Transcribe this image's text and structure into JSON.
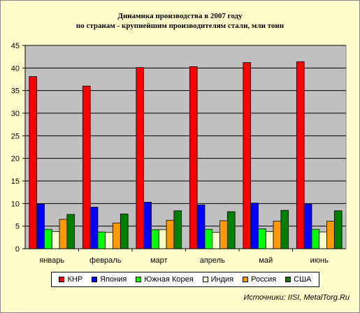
{
  "chart_data": {
    "type": "bar",
    "title_lines": [
      "Динамика производства в 2007 году",
      "по странам - крупнейшим производителям стали, млн тонн"
    ],
    "categories": [
      "январь",
      "февраль",
      "март",
      "апрель",
      "май",
      "июнь"
    ],
    "series": [
      {
        "name": "КНР",
        "color": "#ff0000",
        "values": [
          38.1,
          36.0,
          40.1,
          40.3,
          41.2,
          41.4
        ]
      },
      {
        "name": "Япония",
        "color": "#0000ff",
        "values": [
          9.9,
          9.2,
          10.3,
          9.7,
          10.1,
          9.9
        ]
      },
      {
        "name": "Южная Корея",
        "color": "#00ff00",
        "values": [
          4.3,
          3.7,
          4.2,
          4.3,
          4.4,
          4.3
        ]
      },
      {
        "name": "Индия",
        "color": "#ffffcc",
        "values": [
          3.8,
          3.6,
          4.2,
          3.6,
          3.8,
          3.7
        ]
      },
      {
        "name": "Россия",
        "color": "#ff9900",
        "values": [
          6.5,
          5.7,
          6.3,
          6.2,
          6.1,
          6.1
        ]
      },
      {
        "name": "США",
        "color": "#008000",
        "values": [
          7.6,
          7.7,
          8.4,
          8.2,
          8.5,
          8.4
        ]
      }
    ],
    "ylim": [
      0,
      45
    ],
    "yticks": [
      0,
      5,
      10,
      15,
      20,
      25,
      30,
      35,
      40,
      45
    ],
    "grid": true,
    "legend_position": "bottom",
    "plot_background": "#c0c0c0",
    "chart_background": "#ffffcc"
  },
  "source_note": "Источники: IISI, MetalTorg.Ru"
}
